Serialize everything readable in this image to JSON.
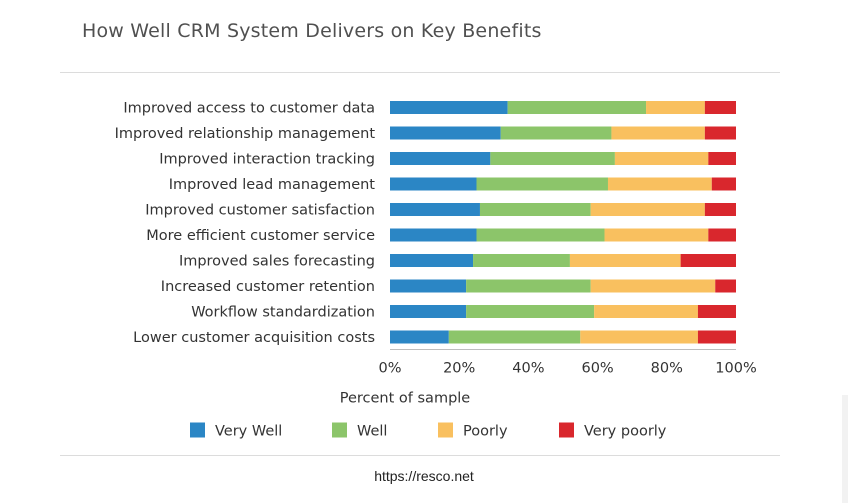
{
  "title": "How Well CRM System Delivers on Key Benefits",
  "source": "https://resco.net",
  "chart_data": {
    "type": "bar",
    "orientation": "horizontal",
    "stacked": true,
    "categories": [
      "Improved access to customer data",
      "Improved relationship management",
      "Improved interaction tracking",
      "Improved lead management",
      "Improved customer satisfaction",
      "More efficient customer service",
      "Improved sales forecasting",
      "Increased customer retention",
      "Workflow standardization",
      "Lower customer acquisition costs"
    ],
    "series": [
      {
        "name": "Very Well",
        "color": "#2b86c5",
        "values": [
          34,
          32,
          29,
          25,
          26,
          25,
          24,
          22,
          22,
          17
        ]
      },
      {
        "name": "Well",
        "color": "#8cc56a",
        "values": [
          40,
          32,
          36,
          38,
          32,
          37,
          28,
          36,
          37,
          38
        ]
      },
      {
        "name": "Poorly",
        "color": "#f9c05f",
        "values": [
          17,
          27,
          27,
          30,
          33,
          30,
          32,
          36,
          30,
          34
        ]
      },
      {
        "name": "Very poorly",
        "color": "#d9272d",
        "values": [
          9,
          9,
          8,
          7,
          9,
          8,
          16,
          6,
          11,
          11
        ]
      }
    ],
    "xlabel": "Percent of sample",
    "xticks": [
      "0%",
      "20%",
      "40%",
      "60%",
      "80%",
      "100%"
    ],
    "xlim": [
      0,
      100
    ],
    "legend_position": "bottom",
    "grid": false
  }
}
